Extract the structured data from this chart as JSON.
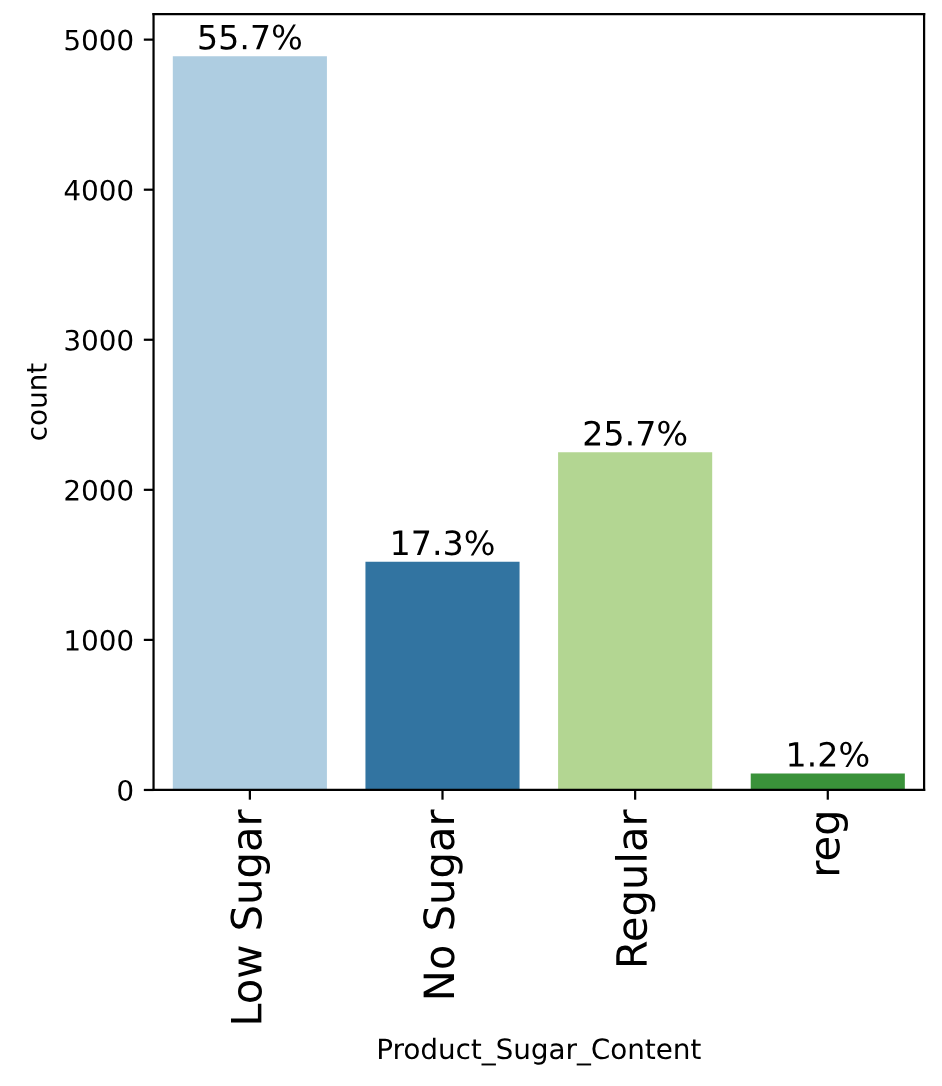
{
  "chart_data": {
    "type": "bar",
    "xlabel": "Product_Sugar_Content",
    "ylabel": "count",
    "categories": [
      "Low Sugar",
      "No Sugar",
      "Regular",
      "reg"
    ],
    "values": [
      4890,
      1520,
      2250,
      110
    ],
    "colors": [
      "#aecde1",
      "#3274a1",
      "#b3d692",
      "#3a923a"
    ],
    "annotations": [
      {
        "text": "55.7%",
        "x": "Low Sugar",
        "y": 4890
      },
      {
        "text": "17.3%",
        "x": "No Sugar",
        "y": 1520
      },
      {
        "text": "25.7%",
        "x": "Regular",
        "y": 2250
      },
      {
        "text": "1.2%",
        "x": "reg",
        "y": 110
      }
    ],
    "ylim": [
      0,
      5170
    ],
    "yticks": [
      0,
      1000,
      2000,
      3000,
      4000,
      5000
    ],
    "grid": false
  }
}
